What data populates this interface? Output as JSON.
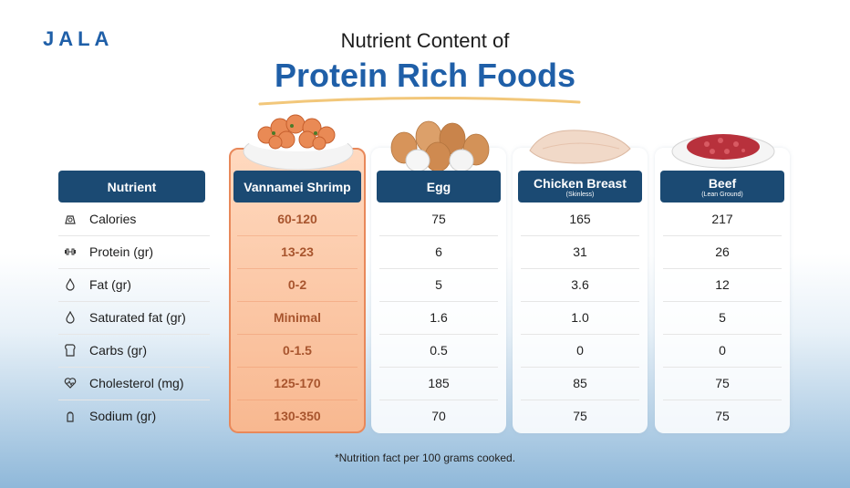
{
  "brand": "JALA",
  "title_line1": "Nutrient Content of",
  "title_line2": "Protein Rich Foods",
  "footnote": "*Nutrition fact per 100 grams cooked.",
  "header_nutrient": "Nutrient",
  "foods": [
    {
      "name": "Vannamei Shrimp",
      "sub": "",
      "highlight": true
    },
    {
      "name": "Egg",
      "sub": "",
      "highlight": false
    },
    {
      "name": "Chicken Breast",
      "sub": "(Skinless)",
      "highlight": false
    },
    {
      "name": "Beef",
      "sub": "(Lean Ground)",
      "highlight": false
    }
  ],
  "rows": [
    {
      "label": "Calories",
      "icon": "scale-icon",
      "values": [
        "60-120",
        "75",
        "165",
        "217"
      ]
    },
    {
      "label": "Protein (gr)",
      "icon": "dumbbell-icon",
      "values": [
        "13-23",
        "6",
        "31",
        "26"
      ]
    },
    {
      "label": "Fat (gr)",
      "icon": "drop-icon",
      "values": [
        "0-2",
        "5",
        "3.6",
        "12"
      ]
    },
    {
      "label": "Saturated fat (gr)",
      "icon": "drop-icon",
      "values": [
        "Minimal",
        "1.6",
        "1.0",
        "5"
      ]
    },
    {
      "label": "Carbs (gr)",
      "icon": "bread-icon",
      "values": [
        "0-1.5",
        "0.5",
        "0",
        "0"
      ]
    },
    {
      "label": "Cholesterol (mg)",
      "icon": "heart-pulse-icon",
      "values": [
        "125-170",
        "185",
        "85",
        "75"
      ]
    },
    {
      "label": "Sodium (gr)",
      "icon": "salt-shaker-icon",
      "values": [
        "130-350",
        "70",
        "75",
        "75"
      ]
    }
  ]
}
